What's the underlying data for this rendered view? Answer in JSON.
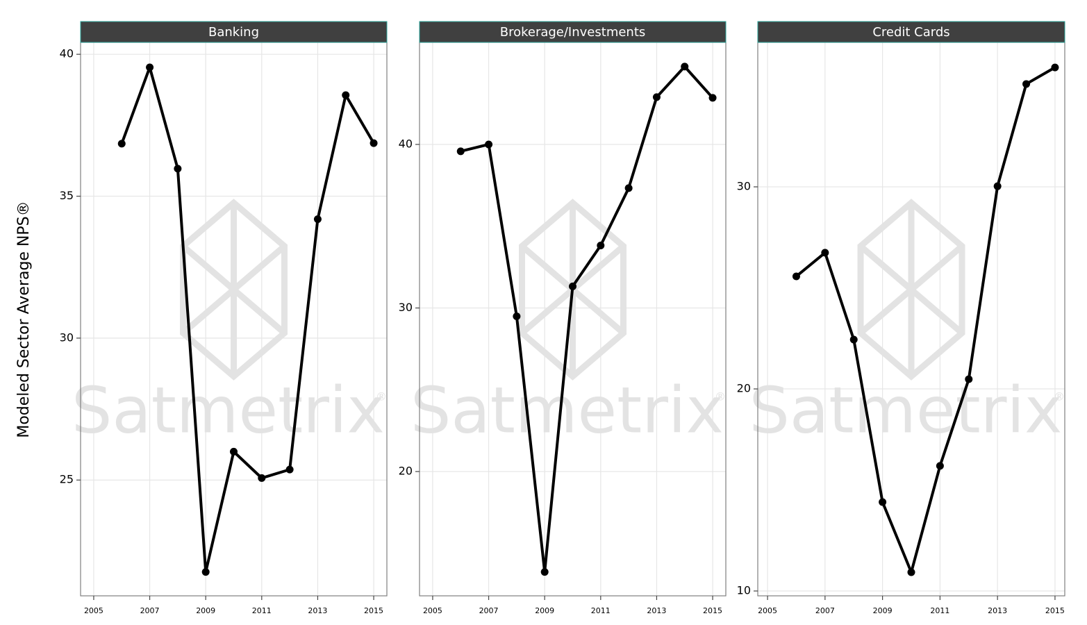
{
  "chart_data": [
    {
      "type": "line",
      "title": "Banking",
      "ylabel": "Modeled Sector Average NPS®",
      "x": [
        2006,
        2007,
        2008,
        2009,
        2010,
        2011,
        2012,
        2013,
        2014,
        2015
      ],
      "values": [
        36.85,
        39.54,
        35.97,
        21.76,
        26.0,
        25.07,
        25.37,
        34.19,
        38.56,
        36.87
      ],
      "color": "#000000",
      "xlim": [
        2004.53,
        2015.47
      ],
      "xticks": [
        2005,
        2007,
        2009,
        2011,
        2013,
        2015
      ],
      "ylim": [
        20.92,
        40.42
      ],
      "yticks": [
        25,
        30,
        35,
        40
      ],
      "grid": true
    },
    {
      "type": "line",
      "title": "Brokerage/Investments",
      "x": [
        2006,
        2007,
        2008,
        2009,
        2010,
        2011,
        2012,
        2013,
        2014,
        2015
      ],
      "values": [
        39.58,
        40.0,
        29.49,
        13.86,
        31.32,
        33.82,
        37.33,
        42.89,
        44.76,
        42.85
      ],
      "color": "#000000",
      "xlim": [
        2004.53,
        2015.47
      ],
      "xticks": [
        2005,
        2007,
        2009,
        2011,
        2013,
        2015
      ],
      "ylim": [
        12.4,
        46.24
      ],
      "yticks": [
        20,
        30,
        40
      ],
      "grid": true
    },
    {
      "type": "line",
      "title": "Credit Cards",
      "x": [
        2006,
        2007,
        2008,
        2009,
        2010,
        2011,
        2012,
        2013,
        2014,
        2015
      ],
      "values": [
        25.57,
        26.74,
        22.44,
        14.4,
        10.93,
        16.19,
        20.48,
        30.03,
        35.09,
        35.91
      ],
      "color": "#000000",
      "xlim": [
        2004.66,
        2015.34
      ],
      "xticks": [
        2005,
        2007,
        2009,
        2011,
        2013,
        2015
      ],
      "ylim": [
        9.76,
        37.15
      ],
      "yticks": [
        10,
        20,
        30
      ],
      "grid": true
    }
  ],
  "watermark": "Satmetrix",
  "watermark_mark": "®"
}
